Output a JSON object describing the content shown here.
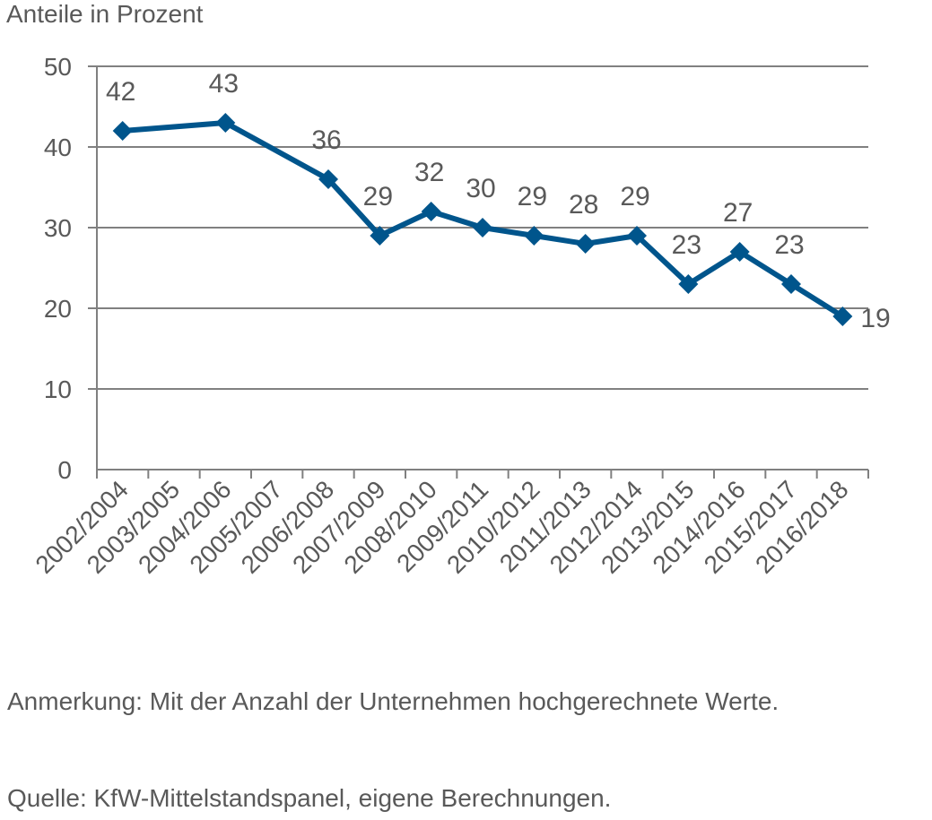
{
  "chart_data": {
    "type": "line",
    "ylabel": "Anteile in Prozent",
    "ylim": [
      0,
      50
    ],
    "yticks": [
      0,
      10,
      20,
      30,
      40,
      50
    ],
    "grid": true,
    "categories": [
      "2002/2004",
      "2003/2005",
      "2004/2006",
      "2005/2007",
      "2006/2008",
      "2007/2009",
      "2008/2010",
      "2009/2011",
      "2010/2012",
      "2011/2013",
      "2012/2014",
      "2013/2015",
      "2014/2016",
      "2015/2017",
      "2016/2018"
    ],
    "points": [
      {
        "category": "2002/2004",
        "value": 42,
        "label": "42"
      },
      {
        "category": "2004/2006",
        "value": 43,
        "label": "43"
      },
      {
        "category": "2006/2008",
        "value": 36,
        "label": "36"
      },
      {
        "category": "2007/2009",
        "value": 29,
        "label": "29"
      },
      {
        "category": "2008/2010",
        "value": 32,
        "label": "32"
      },
      {
        "category": "2009/2011",
        "value": 30,
        "label": "30"
      },
      {
        "category": "2010/2012",
        "value": 29,
        "label": "29"
      },
      {
        "category": "2011/2013",
        "value": 28,
        "label": "28"
      },
      {
        "category": "2012/2014",
        "value": 29,
        "label": "29"
      },
      {
        "category": "2013/2015",
        "value": 23,
        "label": "23"
      },
      {
        "category": "2014/2016",
        "value": 27,
        "label": "27"
      },
      {
        "category": "2015/2017",
        "value": 23,
        "label": "23"
      },
      {
        "category": "2016/2018",
        "value": 19,
        "label": "19"
      }
    ],
    "line_color": "#00558C",
    "grid_color": "#808080"
  },
  "footnote": {
    "note": "Anmerkung: Mit der Anzahl der Unternehmen hochgerechnete Werte.",
    "source": "Quelle: KfW-Mittelstandspanel, eigene Berechnungen."
  }
}
